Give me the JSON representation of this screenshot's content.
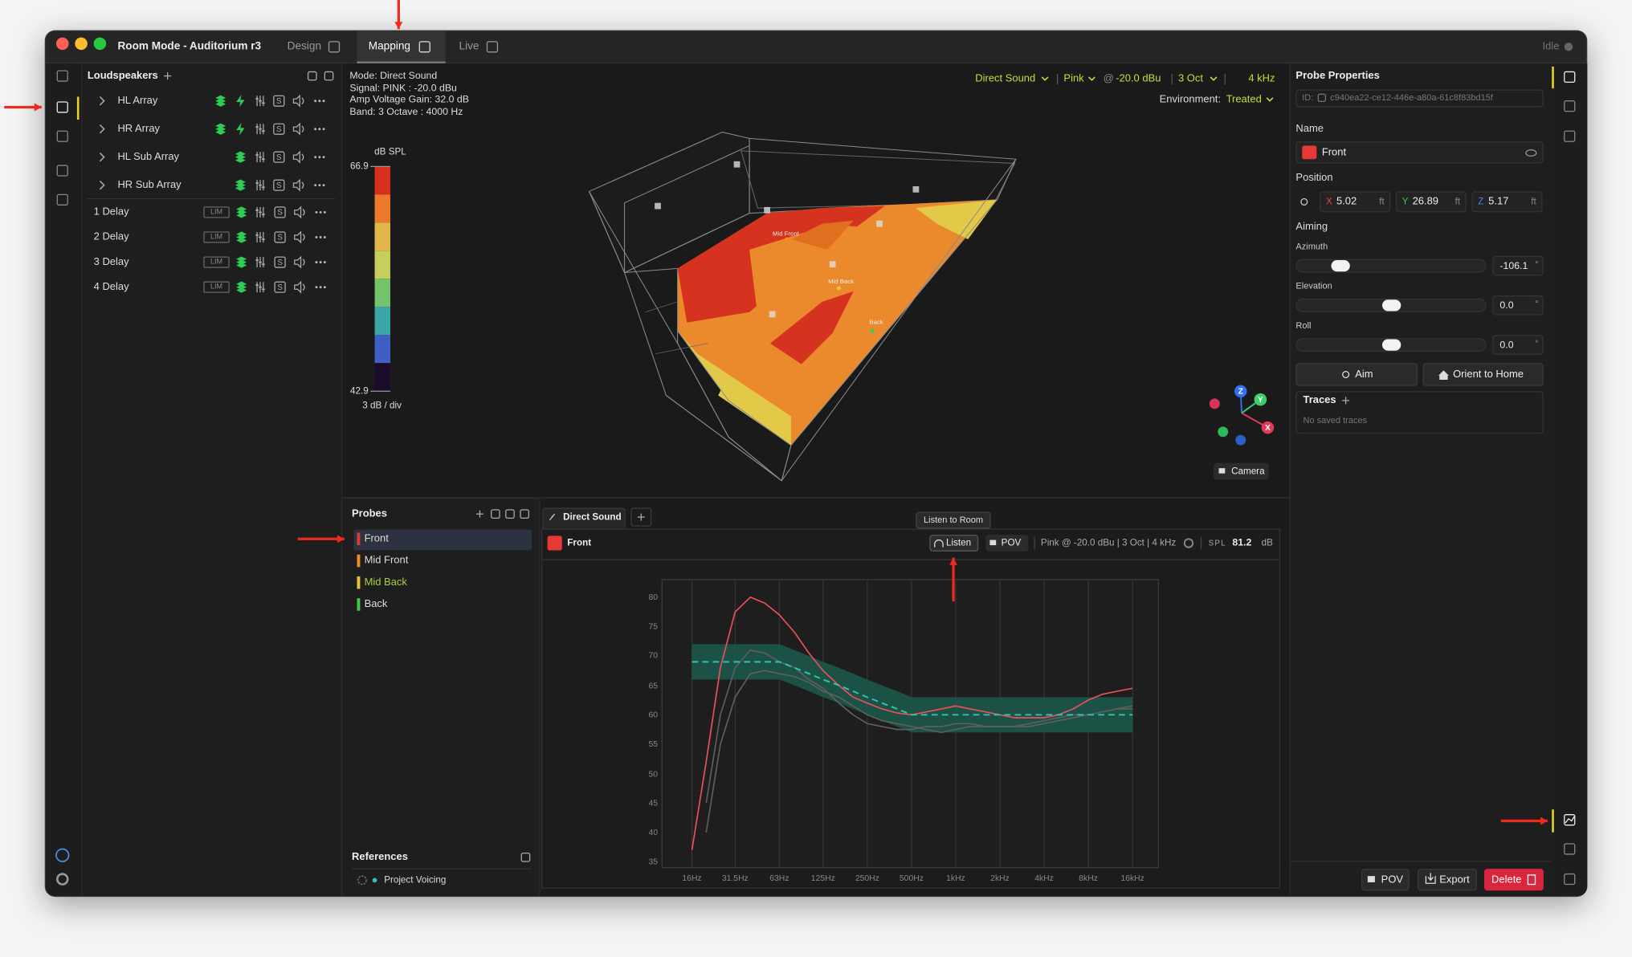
{
  "window": {
    "title": "Room Mode - Auditorium r3",
    "tabs": [
      "Design",
      "Mapping",
      "Live"
    ],
    "active_tab": 1,
    "status": "Idle"
  },
  "loudspeakers": {
    "title": "Loudspeakers",
    "arrays": [
      "HL Array",
      "HR Array",
      "HL Sub Array",
      "HR Sub Array"
    ],
    "delays": [
      "1 Delay",
      "2 Delay",
      "3 Delay",
      "4 Delay"
    ],
    "lim": "LIM",
    "solo": "S"
  },
  "viewport": {
    "info": [
      "Mode: Direct Sound",
      "Signal: PINK : -20.0 dBu",
      "Amp Voltage Gain: 32.0 dB",
      "Band: 3 Octave : 4000 Hz"
    ],
    "controls": {
      "analysis": "Direct Sound",
      "signal": "Pink",
      "at": "@",
      "level": "-20.0 dBu",
      "band": "3 Oct",
      "frequency": "4 kHz",
      "environment_label": "Environment:",
      "environment": "Treated"
    },
    "colorbar": {
      "unit": "dB SPL",
      "max": 66.9,
      "min": 42.9,
      "div": {
        "value": 3,
        "label": "3 dB / div"
      },
      "colors": [
        "#d6301f",
        "#ec7a2b",
        "#e3b84a",
        "#c6cf5b",
        "#74c26a",
        "#3aa6a8",
        "#3f5fc7",
        "#1a0b2a"
      ]
    },
    "axes": [
      "Z",
      "Y",
      "X"
    ],
    "camera": "Camera"
  },
  "probes": {
    "title": "Probes",
    "items": [
      {
        "name": "Front",
        "color": "#e53935"
      },
      {
        "name": "Mid Front",
        "color": "#f28c28"
      },
      {
        "name": "Mid Back",
        "color": "#e8c33a"
      },
      {
        "name": "Back",
        "color": "#3ec94a"
      }
    ],
    "selected": 0,
    "highlighted": 2,
    "references_title": "References",
    "references": [
      "Project Voicing"
    ]
  },
  "response": {
    "tab": "Direct Sound",
    "probe": "Front",
    "tooltip": "Listen to Room",
    "listen": "Listen",
    "pov": "POV",
    "settings": "Pink @ -20.0 dBu | 3 Oct | 4 kHz",
    "spl_label": "SPL",
    "spl": "81.2",
    "spl_unit": "dB",
    "chart": {
      "type": "line",
      "xscale": "log",
      "grid": "x",
      "x": [
        16,
        20,
        25,
        31.5,
        40,
        50,
        63,
        80,
        100,
        125,
        160,
        200,
        250,
        315,
        400,
        500,
        630,
        800,
        1000,
        1250,
        1600,
        2000,
        2500,
        3150,
        4000,
        5000,
        6300,
        8000,
        10000,
        12500,
        16000
      ],
      "xlim": [
        10,
        24000
      ],
      "xticks": [
        {
          "value": 16,
          "label": "16Hz"
        },
        {
          "value": 31.5,
          "label": "31.5Hz"
        },
        {
          "value": 63,
          "label": "63Hz"
        },
        {
          "value": 125,
          "label": "125Hz"
        },
        {
          "value": 250,
          "label": "250Hz"
        },
        {
          "value": 500,
          "label": "500Hz"
        },
        {
          "value": 1000,
          "label": "1kHz"
        },
        {
          "value": 2000,
          "label": "2kHz"
        },
        {
          "value": 4000,
          "label": "4kHz"
        },
        {
          "value": 8000,
          "label": "8kHz"
        },
        {
          "value": 16000,
          "label": "16kHz"
        }
      ],
      "ylim": [
        34,
        83
      ],
      "yticks": [
        35,
        40,
        45,
        50,
        55,
        60,
        65,
        70,
        75,
        80
      ],
      "band": {
        "color": "#1c5a4c",
        "upper": [
          72,
          72,
          72,
          72,
          72,
          72,
          72,
          71,
          70,
          69,
          68,
          67,
          66,
          65,
          64,
          63,
          63,
          63,
          63,
          63,
          63,
          63,
          63,
          63,
          63,
          63,
          63,
          63,
          63,
          63,
          63
        ],
        "lower": [
          66,
          66,
          66,
          66,
          66,
          66,
          66,
          65,
          64,
          63,
          62,
          61,
          60,
          59,
          58,
          57,
          57,
          57,
          57,
          57,
          57,
          57,
          57,
          57,
          57,
          57,
          57,
          57,
          57,
          57,
          57
        ]
      },
      "target": {
        "color": "#2ec4b0",
        "values": [
          69,
          69,
          69,
          69,
          69,
          69,
          69,
          68,
          67,
          66,
          65,
          64,
          63,
          62,
          61,
          60,
          60,
          60,
          60,
          60,
          60,
          60,
          60,
          60,
          60,
          60,
          60,
          60,
          60,
          60,
          60
        ]
      },
      "series": [
        {
          "color": "#5e5e5e",
          "values": [
            null,
            45,
            60,
            68,
            71,
            70.5,
            69,
            68,
            66,
            64.5,
            62,
            60,
            58.5,
            58,
            57.5,
            57.5,
            58,
            58,
            58.5,
            58.5,
            58,
            58,
            58,
            58,
            58.5,
            59,
            59.5,
            60,
            60.5,
            61,
            61
          ]
        },
        {
          "color": "#5e5e5e",
          "values": [
            null,
            40,
            55,
            63,
            67,
            67.5,
            67,
            66.5,
            65.5,
            64,
            63,
            61.5,
            60,
            59,
            58.5,
            58,
            57.5,
            57,
            57.5,
            58,
            58,
            58,
            58,
            58.5,
            59,
            59.5,
            60,
            60,
            60.5,
            61,
            61.5
          ]
        },
        {
          "name": "Front",
          "color": "#e8505a",
          "values": [
            37,
            52,
            68,
            77.5,
            80,
            79,
            77,
            74,
            70.5,
            67.5,
            65,
            63,
            62,
            61,
            60.3,
            60,
            60.5,
            61,
            61.5,
            61,
            60.5,
            60,
            59.5,
            59.5,
            59.5,
            60,
            61,
            62.5,
            63.5,
            64,
            64.5
          ]
        }
      ]
    }
  },
  "properties": {
    "title": "Probe Properties",
    "id_label": "ID:",
    "id": "c940ea22-ce12-446e-a80a-61c8f83bd15f",
    "name_label": "Name",
    "name": "Front",
    "color": "#e53935",
    "position_label": "Position",
    "position": [
      {
        "axis": "X",
        "value": "5.02",
        "color": "#e5484d"
      },
      {
        "axis": "Y",
        "value": "26.89",
        "color": "#3ec94a"
      },
      {
        "axis": "Z",
        "value": "5.17",
        "color": "#4a7ff0"
      }
    ],
    "unit": "ft",
    "aiming_label": "Aiming",
    "aiming": [
      {
        "label": "Azimuth",
        "value": "-106.1"
      },
      {
        "label": "Elevation",
        "value": "0.0"
      },
      {
        "label": "Roll",
        "value": "0.0"
      }
    ],
    "degree": "°",
    "aim": "Aim",
    "orient": "Orient to Home",
    "traces_title": "Traces",
    "traces_empty": "No saved traces",
    "pov": "POV",
    "export": "Export",
    "delete": "Delete"
  }
}
